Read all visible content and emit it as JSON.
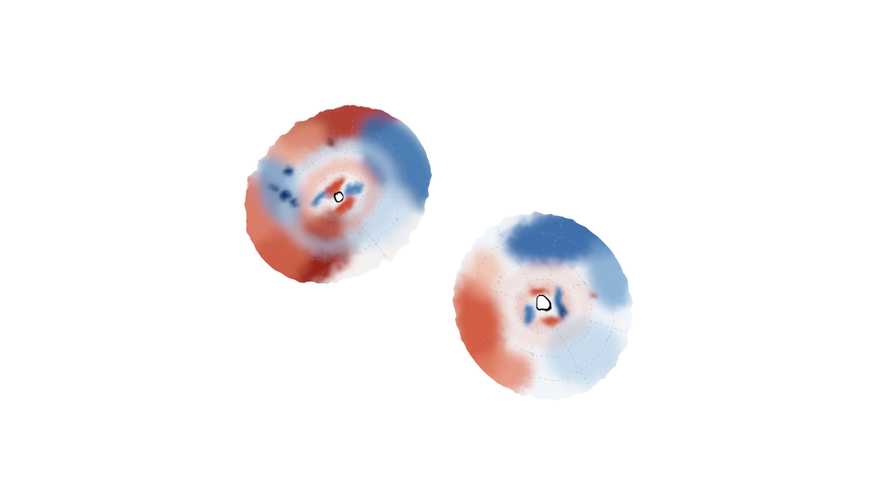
{
  "figure": {
    "panels": [
      {
        "name": "disk-left",
        "colormap": "diverging-red-blue",
        "colors": {
          "strong_red": "#7f0f0f",
          "red": "#c8452f",
          "light_red": "#f2b8a6",
          "white": "#f7f7f7",
          "light_blue": "#b9d3ea",
          "blue": "#3f78b4",
          "strong_blue": "#10356e"
        },
        "grid": true
      },
      {
        "name": "disk-right",
        "colormap": "diverging-red-blue",
        "colors": {
          "strong_red": "#a5271c",
          "red": "#d4593d",
          "light_red": "#f2b8a6",
          "white": "#f7f7f7",
          "light_blue": "#bcd5ea",
          "blue": "#3a74b2",
          "strong_blue": "#173f7b"
        },
        "grid": true
      }
    ],
    "background": "#ffffff"
  }
}
